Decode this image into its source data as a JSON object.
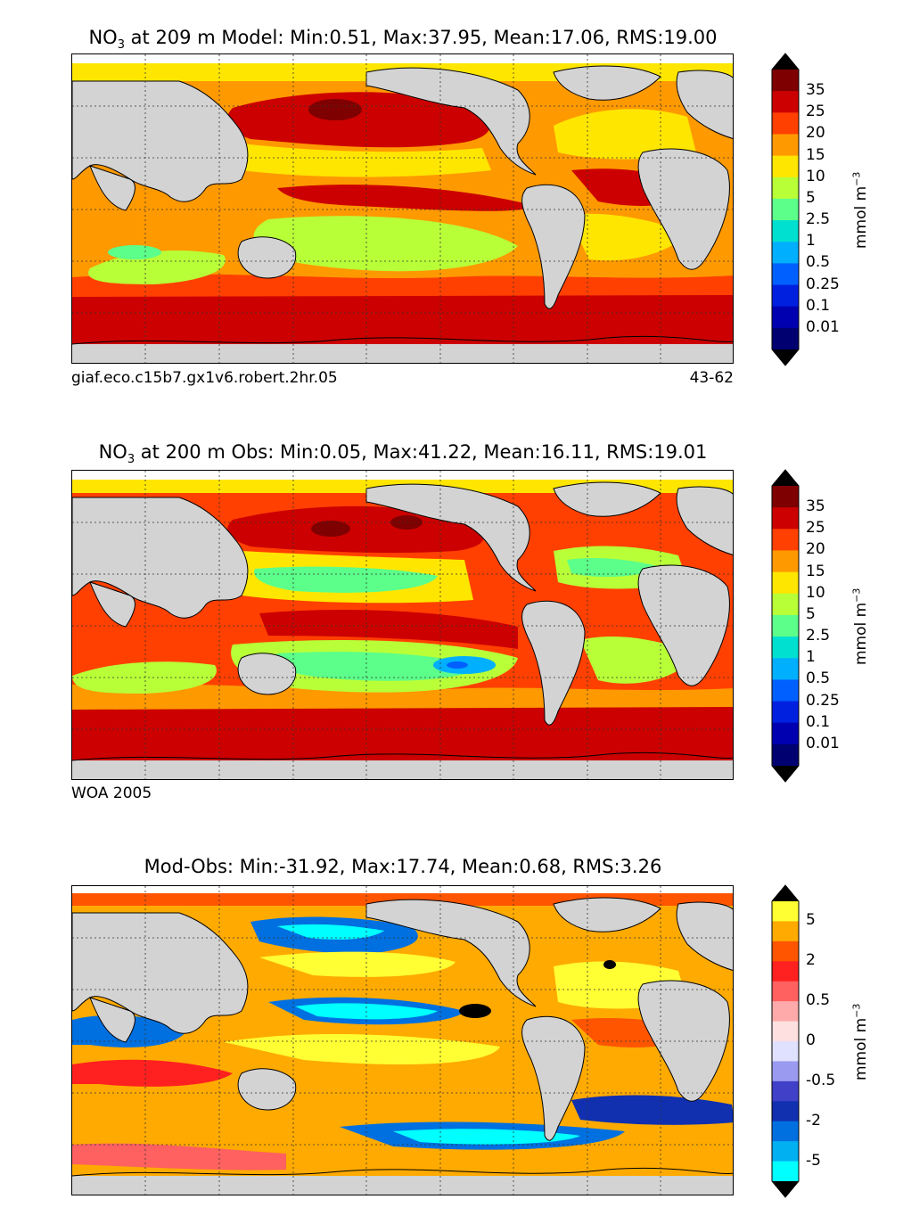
{
  "panels": [
    {
      "title_prefix": "NO",
      "title_sub": "3",
      "title_rest": " at 209 m Model: Min:0.51, Max:37.95, Mean:17.06, RMS:19.00",
      "caption_left": "giaf.eco.c15b7.gx1v6.robert.2hr.05",
      "caption_right": "43-62",
      "colorbar": {
        "labels": [
          "35",
          "25",
          "20",
          "15",
          "10",
          "5",
          "2.5",
          "1",
          "0.5",
          "0.25",
          "0.1",
          "0.01"
        ],
        "colors_top_to_bottom": [
          "#7f0000",
          "#cc0000",
          "#ff4000",
          "#ff9900",
          "#ffe600",
          "#b8ff38",
          "#5cff8a",
          "#00e0d0",
          "#00b0ff",
          "#0060ff",
          "#0020e0",
          "#0000b0",
          "#000070"
        ],
        "extend_top": "#000000",
        "extend_bottom": "#000000",
        "unit": "mmol m",
        "unit_sup": "−3"
      }
    },
    {
      "title_prefix": "NO",
      "title_sub": "3",
      "title_rest": " at 200 m Obs: Min:0.05, Max:41.22, Mean:16.11, RMS:19.01",
      "caption_left": "WOA 2005",
      "caption_right": "",
      "colorbar": {
        "labels": [
          "35",
          "25",
          "20",
          "15",
          "10",
          "5",
          "2.5",
          "1",
          "0.5",
          "0.25",
          "0.1",
          "0.01"
        ],
        "colors_top_to_bottom": [
          "#7f0000",
          "#cc0000",
          "#ff4000",
          "#ff9900",
          "#ffe600",
          "#b8ff38",
          "#5cff8a",
          "#00e0d0",
          "#00b0ff",
          "#0060ff",
          "#0020e0",
          "#0000b0",
          "#000070"
        ],
        "extend_top": "#000000",
        "extend_bottom": "#000000",
        "unit": "mmol m",
        "unit_sup": "−3"
      }
    },
    {
      "title_prefix": "",
      "title_sub": "",
      "title_rest": "Mod-Obs: Min:-31.92, Max:17.74, Mean:0.68, RMS:3.26",
      "caption_left": "",
      "caption_right": "",
      "colorbar": {
        "labels": [
          "5",
          "2",
          "0.5",
          "0",
          "-0.5",
          "-2",
          "-5"
        ],
        "colors_top_to_bottom": [
          "#ffff33",
          "#ffaa00",
          "#ff5500",
          "#ff2020",
          "#ff6060",
          "#ffaaaa",
          "#ffe0e0",
          "#e0e0ff",
          "#9a9af0",
          "#4040c8",
          "#1030b0",
          "#0070e0",
          "#00b0f0",
          "#00ffff"
        ],
        "extend_top": "#000000",
        "extend_bottom": "#000000",
        "unit": "mmol m",
        "unit_sup": "−3"
      }
    }
  ],
  "colors": {
    "land": "#d3d3d3",
    "sea_ice": "#ffffff",
    "coast": "#000000",
    "grid": "#333333"
  }
}
